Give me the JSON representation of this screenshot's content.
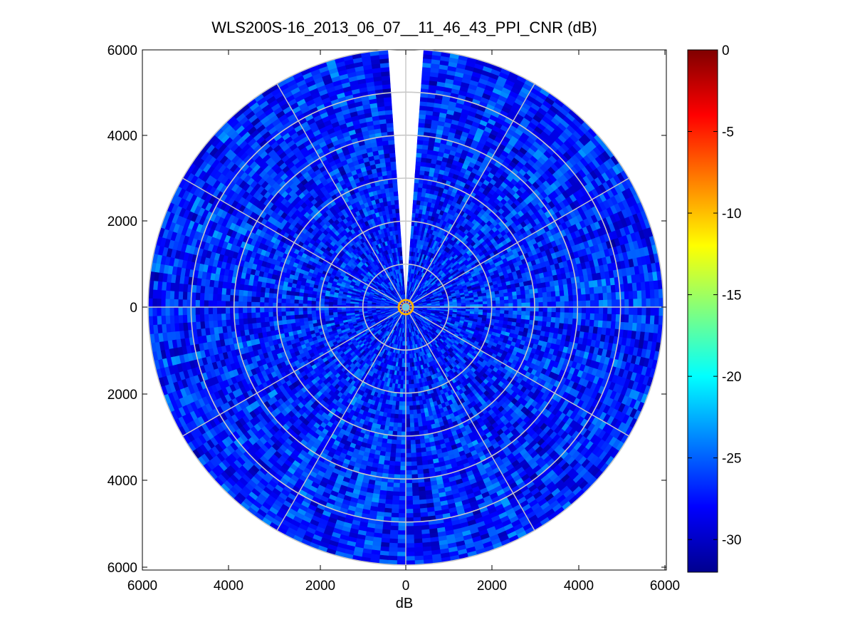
{
  "title": "WLS200S-16_2013_06_07__11_46_43_PPI_CNR (dB)",
  "chart_data": {
    "type": "heatmap",
    "subtype": "polar-ppi",
    "title": "WLS200S-16_2013_06_07__11_46_43_PPI_CNR (dB)",
    "xlabel": "dB",
    "ylabel": "",
    "xlim": [
      -6000,
      6000
    ],
    "ylim": [
      -6000,
      6000
    ],
    "x_ticks": [
      6000,
      4000,
      2000,
      0,
      2000,
      4000,
      6000
    ],
    "y_ticks": [
      6000,
      4000,
      2000,
      0,
      2000,
      4000,
      6000
    ],
    "max_range": 6000,
    "range_rings": [
      1000,
      2000,
      3000,
      4000,
      5000,
      6000
    ],
    "spokes_deg": [
      0,
      30,
      60,
      90,
      120,
      150,
      180,
      210,
      240,
      270,
      300,
      330
    ],
    "missing_sector_deg": [
      -4,
      4
    ],
    "grid": true,
    "colorbar": {
      "colormap": "jet",
      "clim": [
        -32,
        0
      ],
      "ticks": [
        0,
        -5,
        -10,
        -15,
        -20,
        -25,
        -30
      ]
    },
    "typical_value_range": [
      -30,
      -24
    ],
    "near_range_value": -10
  }
}
